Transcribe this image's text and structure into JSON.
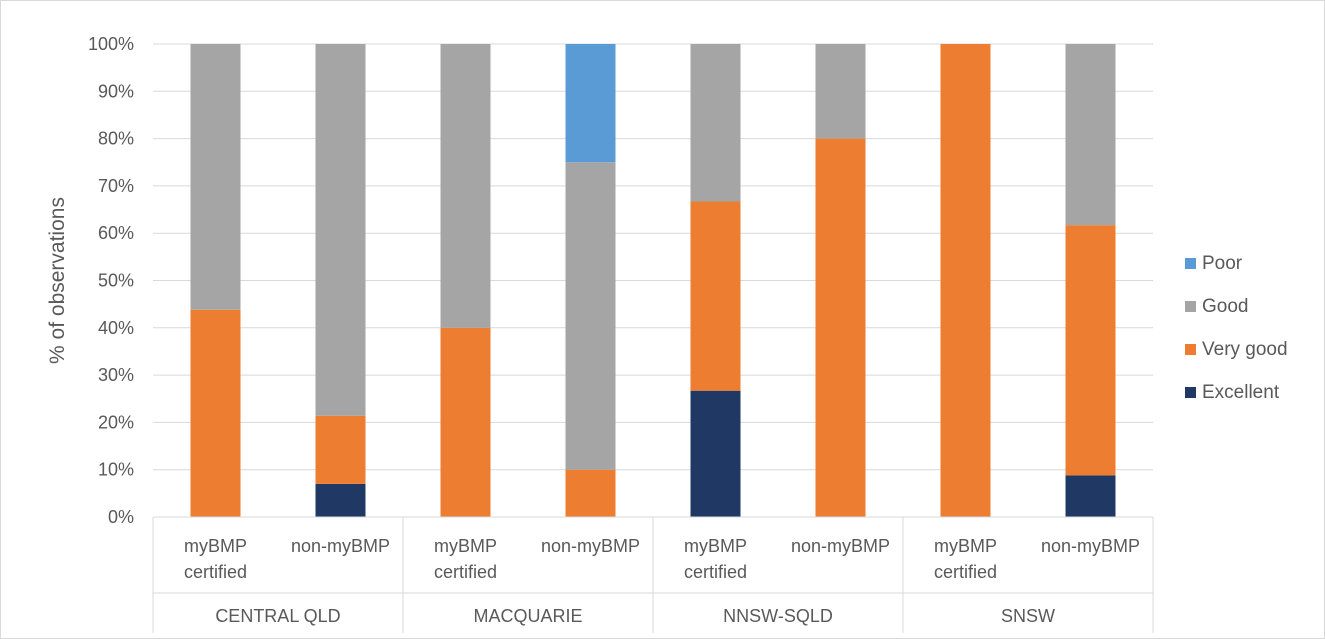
{
  "chart_data": {
    "type": "bar",
    "stacked": true,
    "percent": true,
    "title": "",
    "xlabel": "",
    "ylabel": "% of observations",
    "ylim": [
      0,
      100
    ],
    "y_ticks": [
      "0%",
      "10%",
      "20%",
      "30%",
      "40%",
      "50%",
      "60%",
      "70%",
      "80%",
      "90%",
      "100%"
    ],
    "grid": true,
    "legend_position": "right",
    "groups": [
      "CENTRAL QLD",
      "MACQUARIE",
      "NNSW-SQLD",
      "SNSW"
    ],
    "categories": [
      {
        "group": "CENTRAL QLD",
        "line1": "myBMP",
        "line2": "certified"
      },
      {
        "group": "CENTRAL QLD",
        "line1": "non-myBMP",
        "line2": ""
      },
      {
        "group": "MACQUARIE",
        "line1": "myBMP",
        "line2": "certified"
      },
      {
        "group": "MACQUARIE",
        "line1": "non-myBMP",
        "line2": ""
      },
      {
        "group": "NNSW-SQLD",
        "line1": "myBMP",
        "line2": "certified"
      },
      {
        "group": "NNSW-SQLD",
        "line1": "non-myBMP",
        "line2": ""
      },
      {
        "group": "SNSW",
        "line1": "myBMP",
        "line2": "certified"
      },
      {
        "group": "SNSW",
        "line1": "non-myBMP",
        "line2": ""
      }
    ],
    "series": [
      {
        "name": "Excellent",
        "color": "#1f3864",
        "values": [
          0,
          7,
          0,
          0,
          26.7,
          0,
          0,
          8.8
        ]
      },
      {
        "name": "Very good",
        "color": "#ed7d31",
        "values": [
          43.8,
          14.4,
          40,
          10,
          40,
          80,
          100,
          52.9
        ]
      },
      {
        "name": "Good",
        "color": "#a5a5a5",
        "values": [
          56.2,
          78.6,
          60,
          65,
          33.3,
          20,
          0,
          38.3
        ]
      },
      {
        "name": "Poor",
        "color": "#5b9bd5",
        "values": [
          0,
          0,
          0,
          25,
          0,
          0,
          0,
          0
        ]
      }
    ],
    "legend_order": [
      "Poor",
      "Good",
      "Very good",
      "Excellent"
    ]
  }
}
